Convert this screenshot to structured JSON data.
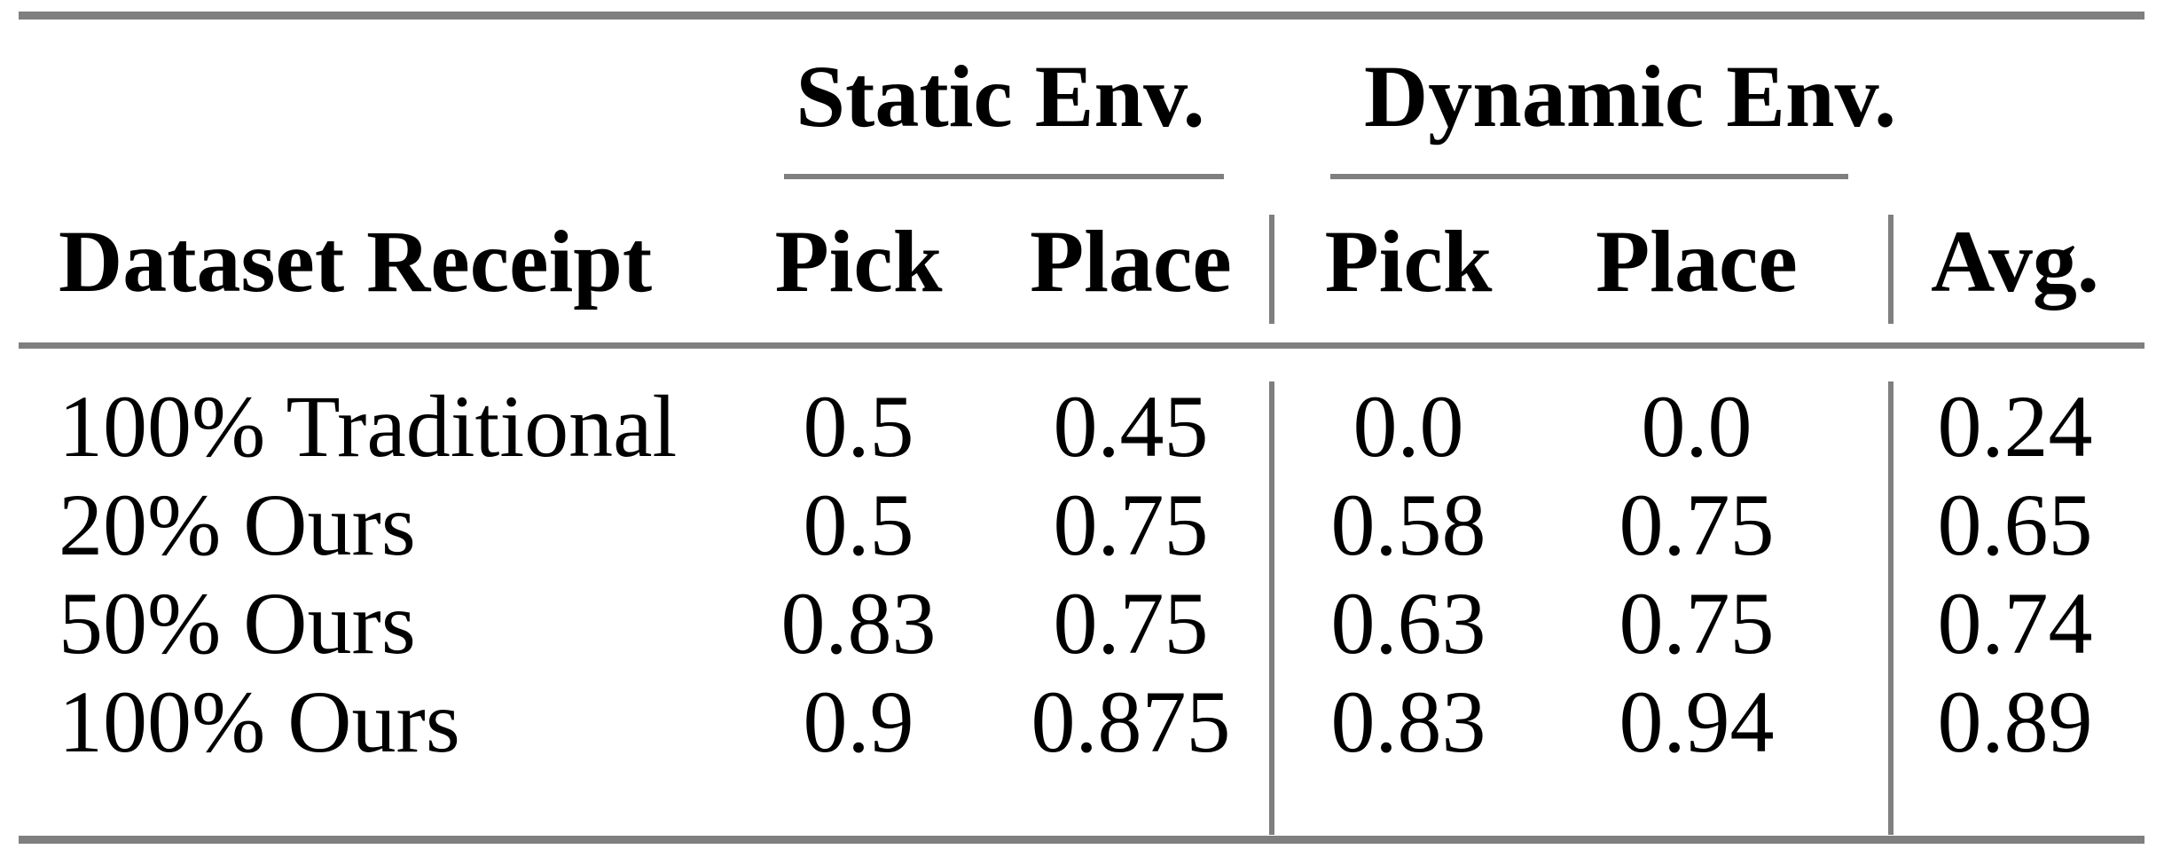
{
  "table": {
    "column_groups": [
      {
        "label": "Static Env."
      },
      {
        "label": "Dynamic Env."
      }
    ],
    "header": {
      "dataset_receipt": "Dataset Receipt",
      "static_pick": "Pick",
      "static_place": "Place",
      "dynamic_pick": "Pick",
      "dynamic_place": "Place",
      "avg": "Avg."
    },
    "rows": [
      {
        "dataset_receipt": "100% Traditional",
        "static_pick": "0.5",
        "static_place": "0.45",
        "dynamic_pick": "0.0",
        "dynamic_place": "0.0",
        "avg": "0.24"
      },
      {
        "dataset_receipt": "20% Ours",
        "static_pick": "0.5",
        "static_place": "0.75",
        "dynamic_pick": "0.58",
        "dynamic_place": "0.75",
        "avg": "0.65"
      },
      {
        "dataset_receipt": "50% Ours",
        "static_pick": "0.83",
        "static_place": "0.75",
        "dynamic_pick": "0.63",
        "dynamic_place": "0.75",
        "avg": "0.74"
      },
      {
        "dataset_receipt": "100% Ours",
        "static_pick": "0.9",
        "static_place": "0.875",
        "dynamic_pick": "0.83",
        "dynamic_place": "0.94",
        "avg": "0.89"
      }
    ]
  },
  "chart_data": {
    "type": "table",
    "categories": [
      "100% Traditional",
      "20% Ours",
      "50% Ours",
      "100% Ours"
    ],
    "series": [
      {
        "name": "Static Env. Pick",
        "values": [
          0.5,
          0.5,
          0.83,
          0.9
        ]
      },
      {
        "name": "Static Env. Place",
        "values": [
          0.45,
          0.75,
          0.75,
          0.875
        ]
      },
      {
        "name": "Dynamic Env. Pick",
        "values": [
          0.0,
          0.58,
          0.63,
          0.83
        ]
      },
      {
        "name": "Dynamic Env. Place",
        "values": [
          0.0,
          0.75,
          0.75,
          0.94
        ]
      },
      {
        "name": "Avg.",
        "values": [
          0.24,
          0.65,
          0.74,
          0.89
        ]
      }
    ]
  },
  "colors": {
    "rule": "#7f7f7f",
    "text": "#000000",
    "background": "#ffffff"
  }
}
